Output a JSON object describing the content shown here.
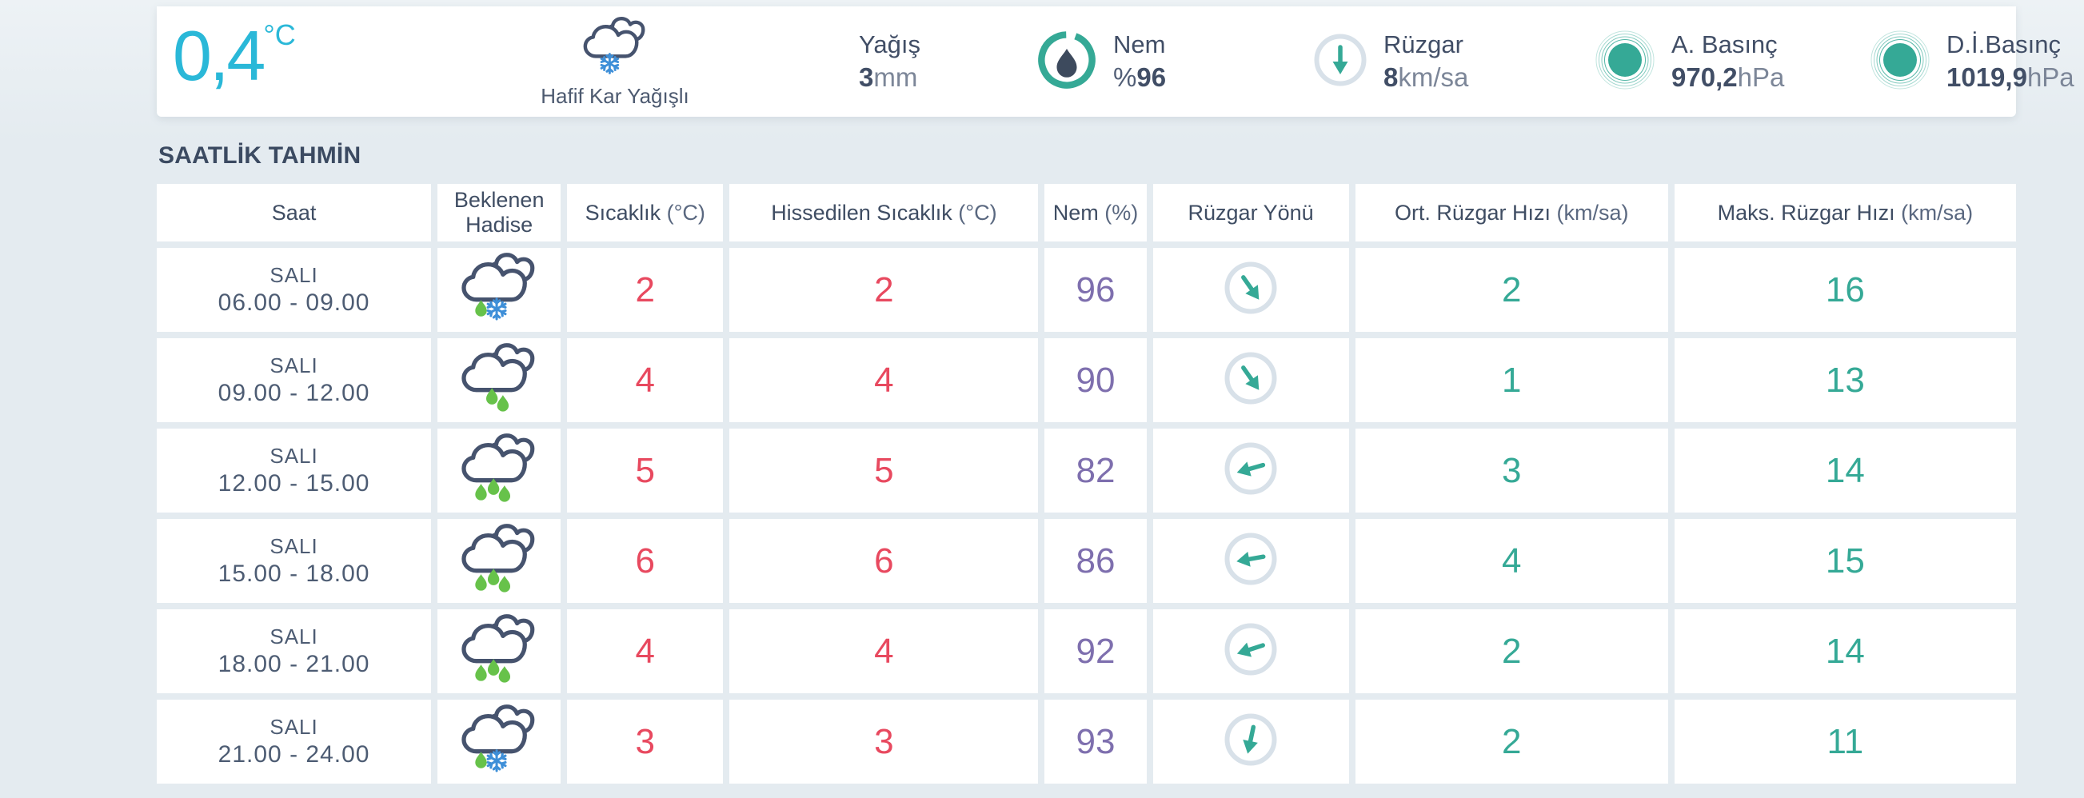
{
  "colors": {
    "background": "#e4ebf0",
    "card": "#ffffff",
    "navy_text": "#414e66",
    "temperature_cyan": "#2ab8d8",
    "teal": "#35a996",
    "temp_red": "#e8495f",
    "humidity_purple": "#7e6fae",
    "raindrop_green": "#67c24a",
    "snowflake_blue": "#3e8fd8",
    "cloud_outline": "#46536e",
    "wind_ring_gray": "#d8e1e9"
  },
  "current": {
    "temperature": "0,4",
    "temperature_unit": "°C",
    "condition": "Hafif Kar Yağışlı",
    "condition_icon": "cloud-snow",
    "metrics": [
      {
        "id": "precipitation",
        "label": "Yağış",
        "prefix": "",
        "value": "3",
        "unit": "mm",
        "icon": ""
      },
      {
        "id": "humidity",
        "label": "Nem",
        "prefix": "%",
        "value": "96",
        "unit": "",
        "icon": "humidity-gauge-icon",
        "gauge_percent": 96
      },
      {
        "id": "wind",
        "label": "Rüzgar",
        "prefix": "",
        "value": "8",
        "unit": "km/sa",
        "icon": "wind-direction-icon",
        "direction_deg": 0
      },
      {
        "id": "pressure",
        "label": "A. Basınç",
        "prefix": "",
        "value": "970,2",
        "unit": "hPa",
        "icon": "pressure-icon"
      },
      {
        "id": "sea-level-pressure",
        "label": "D.İ.Basınç",
        "prefix": "",
        "value": "1019,9",
        "unit": "hPa",
        "icon": "pressure-icon"
      }
    ]
  },
  "forecast": {
    "title": "SAATLİK TAHMİN",
    "columns": [
      {
        "label": "Saat",
        "unit": ""
      },
      {
        "label": "Beklenen Hadise",
        "unit": ""
      },
      {
        "label": "Sıcaklık",
        "unit": "(°C)"
      },
      {
        "label": "Hissedilen Sıcaklık",
        "unit": "(°C)"
      },
      {
        "label": "Nem",
        "unit": "(%)"
      },
      {
        "label": "Rüzgar Yönü",
        "unit": ""
      },
      {
        "label": "Ort. Rüzgar Hızı",
        "unit": "(km/sa)"
      },
      {
        "label": "Maks. Rüzgar Hızı",
        "unit": "(km/sa)"
      }
    ],
    "rows": [
      {
        "day": "SALI",
        "time": "06.00 - 09.00",
        "icon": "cloud-sleet",
        "temp": "2",
        "feels_like": "2",
        "humidity": "96",
        "wind_dir_deg": -35,
        "avg_wind": "2",
        "max_wind": "16"
      },
      {
        "day": "SALI",
        "time": "09.00 - 12.00",
        "icon": "cloud-light-rain",
        "temp": "4",
        "feels_like": "4",
        "humidity": "90",
        "wind_dir_deg": -35,
        "avg_wind": "1",
        "max_wind": "13"
      },
      {
        "day": "SALI",
        "time": "12.00 - 15.00",
        "icon": "cloud-rain",
        "temp": "5",
        "feels_like": "5",
        "humidity": "82",
        "wind_dir_deg": 74,
        "avg_wind": "3",
        "max_wind": "14"
      },
      {
        "day": "SALI",
        "time": "15.00 - 18.00",
        "icon": "cloud-rain",
        "temp": "6",
        "feels_like": "6",
        "humidity": "86",
        "wind_dir_deg": 80,
        "avg_wind": "4",
        "max_wind": "15"
      },
      {
        "day": "SALI",
        "time": "18.00 - 21.00",
        "icon": "cloud-rain",
        "temp": "4",
        "feels_like": "4",
        "humidity": "92",
        "wind_dir_deg": 72,
        "avg_wind": "2",
        "max_wind": "14"
      },
      {
        "day": "SALI",
        "time": "21.00 - 24.00",
        "icon": "cloud-sleet",
        "temp": "3",
        "feels_like": "3",
        "humidity": "93",
        "wind_dir_deg": 12,
        "avg_wind": "2",
        "max_wind": "11"
      }
    ]
  }
}
